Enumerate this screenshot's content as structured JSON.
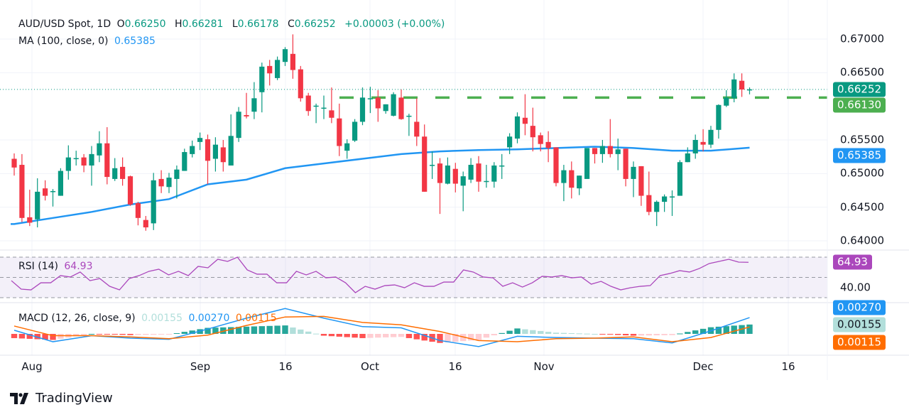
{
  "header": {
    "symbol": "AUD/USD Spot, 1D",
    "o_label": "O",
    "open": "0.66250",
    "h_label": "H",
    "high": "0.66281",
    "l_label": "L",
    "low": "0.66178",
    "c_label": "C",
    "close": "0.66252",
    "change": "+0.00003 (+0.00%)"
  },
  "ma_legend": {
    "label": "MA (100, close, 0)",
    "value": "0.65385"
  },
  "rsi_legend": {
    "label": "RSI (14)",
    "value": "64.93"
  },
  "macd_legend": {
    "label": "MACD (12, 26, close, 9)",
    "hist": "0.00155",
    "macd": "0.00270",
    "signal": "0.00115"
  },
  "price_axis": {
    "ticks": [
      "0.67000",
      "0.66500",
      "0.65500",
      "0.65000",
      "0.64500",
      "0.64000"
    ],
    "current_price": "0.66252",
    "resistance": "0.66130",
    "ma_value": "0.65385"
  },
  "rsi_axis": {
    "tick": "40.00",
    "value": "64.93"
  },
  "macd_axis": {
    "macd": "0.00270",
    "hist": "0.00155",
    "signal": "0.00115"
  },
  "time_axis": [
    "Aug",
    "Sep",
    "16",
    "Oct",
    "16",
    "Nov",
    "Dec",
    "16"
  ],
  "colors": {
    "up": "#089981",
    "down": "#f23645",
    "ma": "#2196f3",
    "resistance": "#4caf50",
    "rsi": "#ab47bc",
    "macd": "#2196f3",
    "signal": "#ff6d00",
    "hist_up_strong": "#26a69a",
    "hist_up_weak": "#b2dfdb",
    "hist_down_strong": "#ff5252",
    "hist_down_weak": "#ffcdd2"
  },
  "footer": {
    "brand": "TradingView"
  },
  "chart_data": {
    "type": "candlestick",
    "ylim": [
      0.638,
      0.6715
    ],
    "candles_ohlc": [
      [
        0.6522,
        0.653,
        0.6497,
        0.6509
      ],
      [
        0.6513,
        0.6529,
        0.6428,
        0.6434
      ],
      [
        0.6435,
        0.6476,
        0.6422,
        0.6427
      ],
      [
        0.6432,
        0.6493,
        0.642,
        0.6473
      ],
      [
        0.6478,
        0.649,
        0.646,
        0.6467
      ],
      [
        0.6474,
        0.6477,
        0.6451,
        0.6474
      ],
      [
        0.6467,
        0.6508,
        0.6467,
        0.6504
      ],
      [
        0.6504,
        0.6542,
        0.6491,
        0.6524
      ],
      [
        0.6523,
        0.6534,
        0.6512,
        0.6523
      ],
      [
        0.6524,
        0.6529,
        0.6502,
        0.6512
      ],
      [
        0.6512,
        0.6541,
        0.6482,
        0.6529
      ],
      [
        0.6527,
        0.6563,
        0.6517,
        0.6545
      ],
      [
        0.6545,
        0.6569,
        0.6484,
        0.6495
      ],
      [
        0.6492,
        0.6523,
        0.6489,
        0.6508
      ],
      [
        0.651,
        0.6524,
        0.6482,
        0.6492
      ],
      [
        0.6496,
        0.6497,
        0.6452,
        0.6454
      ],
      [
        0.6456,
        0.6458,
        0.6423,
        0.6434
      ],
      [
        0.6431,
        0.6437,
        0.6415,
        0.642
      ],
      [
        0.6426,
        0.6501,
        0.6416,
        0.649
      ],
      [
        0.6492,
        0.6505,
        0.6471,
        0.6481
      ],
      [
        0.648,
        0.6501,
        0.6471,
        0.6494
      ],
      [
        0.6492,
        0.6512,
        0.6463,
        0.6506
      ],
      [
        0.6504,
        0.6537,
        0.6504,
        0.6532
      ],
      [
        0.6529,
        0.6549,
        0.6524,
        0.6541
      ],
      [
        0.6547,
        0.6561,
        0.6535,
        0.6553
      ],
      [
        0.6551,
        0.6558,
        0.6484,
        0.6519
      ],
      [
        0.6522,
        0.6554,
        0.6503,
        0.6543
      ],
      [
        0.6539,
        0.655,
        0.6503,
        0.6517
      ],
      [
        0.6512,
        0.6588,
        0.6512,
        0.6556
      ],
      [
        0.6553,
        0.6599,
        0.6547,
        0.6592
      ],
      [
        0.6587,
        0.662,
        0.6582,
        0.6585
      ],
      [
        0.6592,
        0.6636,
        0.6581,
        0.6612
      ],
      [
        0.6621,
        0.6665,
        0.6591,
        0.6659
      ],
      [
        0.666,
        0.6669,
        0.6631,
        0.6649
      ],
      [
        0.6642,
        0.6674,
        0.6639,
        0.6669
      ],
      [
        0.6666,
        0.6688,
        0.666,
        0.6685
      ],
      [
        0.6678,
        0.6707,
        0.6641,
        0.6654
      ],
      [
        0.6655,
        0.666,
        0.6607,
        0.6612
      ],
      [
        0.6616,
        0.662,
        0.6586,
        0.6593
      ],
      [
        0.6601,
        0.6604,
        0.6575,
        0.6601
      ],
      [
        0.6598,
        0.6616,
        0.6581,
        0.6598
      ],
      [
        0.6594,
        0.6628,
        0.6575,
        0.6583
      ],
      [
        0.6582,
        0.6604,
        0.6526,
        0.6541
      ],
      [
        0.6534,
        0.6551,
        0.6522,
        0.6545
      ],
      [
        0.6549,
        0.6581,
        0.6547,
        0.6577
      ],
      [
        0.6577,
        0.6628,
        0.6572,
        0.6613
      ],
      [
        0.6612,
        0.6629,
        0.659,
        0.6612
      ],
      [
        0.6613,
        0.6624,
        0.6577,
        0.6597
      ],
      [
        0.6593,
        0.6603,
        0.6589,
        0.6603
      ],
      [
        0.6586,
        0.6621,
        0.6585,
        0.6618
      ],
      [
        0.6613,
        0.6625,
        0.658,
        0.6581
      ],
      [
        0.6586,
        0.6589,
        0.6556,
        0.6586
      ],
      [
        0.6577,
        0.6612,
        0.6541,
        0.6555
      ],
      [
        0.6555,
        0.6573,
        0.6473,
        0.6473
      ],
      [
        0.6513,
        0.6533,
        0.6492,
        0.6513
      ],
      [
        0.6515,
        0.6523,
        0.644,
        0.6486
      ],
      [
        0.6485,
        0.6524,
        0.6484,
        0.6512
      ],
      [
        0.6507,
        0.6516,
        0.6472,
        0.6485
      ],
      [
        0.6482,
        0.6503,
        0.6444,
        0.6496
      ],
      [
        0.6491,
        0.6523,
        0.6486,
        0.6513
      ],
      [
        0.6515,
        0.6526,
        0.6473,
        0.6488
      ],
      [
        0.6489,
        0.6513,
        0.6479,
        0.6489
      ],
      [
        0.6488,
        0.6517,
        0.6479,
        0.6512
      ],
      [
        0.6512,
        0.6529,
        0.6492,
        0.6512
      ],
      [
        0.6539,
        0.656,
        0.6529,
        0.6555
      ],
      [
        0.6552,
        0.6591,
        0.6545,
        0.6585
      ],
      [
        0.6583,
        0.6618,
        0.6557,
        0.6574
      ],
      [
        0.6571,
        0.6598,
        0.6533,
        0.6554
      ],
      [
        0.6557,
        0.6561,
        0.6533,
        0.6544
      ],
      [
        0.6547,
        0.6563,
        0.6517,
        0.6538
      ],
      [
        0.6539,
        0.6539,
        0.6481,
        0.6486
      ],
      [
        0.6486,
        0.6513,
        0.6459,
        0.6505
      ],
      [
        0.6505,
        0.6518,
        0.6463,
        0.6479
      ],
      [
        0.6478,
        0.6497,
        0.6468,
        0.6497
      ],
      [
        0.6492,
        0.6538,
        0.6492,
        0.6538
      ],
      [
        0.6538,
        0.6538,
        0.6515,
        0.6529
      ],
      [
        0.6529,
        0.655,
        0.6516,
        0.6541
      ],
      [
        0.6541,
        0.6581,
        0.6524,
        0.6529
      ],
      [
        0.6529,
        0.6552,
        0.6505,
        0.6536
      ],
      [
        0.6537,
        0.6537,
        0.6481,
        0.6492
      ],
      [
        0.6492,
        0.6518,
        0.6465,
        0.651
      ],
      [
        0.6511,
        0.6511,
        0.6452,
        0.6467
      ],
      [
        0.6468,
        0.6503,
        0.6438,
        0.6443
      ],
      [
        0.6443,
        0.646,
        0.6422,
        0.6458
      ],
      [
        0.6458,
        0.6469,
        0.6443,
        0.6466
      ],
      [
        0.6466,
        0.6475,
        0.6437,
        0.6466
      ],
      [
        0.6467,
        0.652,
        0.6467,
        0.6517
      ],
      [
        0.6517,
        0.6539,
        0.6517,
        0.653
      ],
      [
        0.653,
        0.6558,
        0.6522,
        0.655
      ],
      [
        0.6547,
        0.6566,
        0.6533,
        0.6543
      ],
      [
        0.6543,
        0.6571,
        0.6538,
        0.6565
      ],
      [
        0.6565,
        0.6603,
        0.6552,
        0.6602
      ],
      [
        0.6601,
        0.6624,
        0.6599,
        0.6613
      ],
      [
        0.6612,
        0.6649,
        0.6606,
        0.664
      ],
      [
        0.6638,
        0.6649,
        0.6614,
        0.6625
      ],
      [
        0.6625,
        0.66281,
        0.66178,
        0.66252
      ]
    ],
    "ma100_every_5_bars": [
      0.6425,
      0.6434,
      0.6443,
      0.6454,
      0.6462,
      0.6484,
      0.6491,
      0.6508,
      0.6515,
      0.6522,
      0.6529,
      0.6533,
      0.6535,
      0.6536,
      0.6538,
      0.654,
      0.6538,
      0.6534,
      0.6534,
      0.65385
    ],
    "resistance_level": 0.6613,
    "rsi": {
      "levels": [
        70,
        50,
        30
      ],
      "values": [
        46.8,
        38.4,
        37.7,
        44.7,
        44.7,
        51.8,
        50.4,
        55.3,
        46.8,
        48.9,
        41.2,
        37.7,
        48.9,
        51.8,
        56.0,
        58.1,
        52.5,
        56.0,
        51.8,
        60.9,
        59.5,
        67.9,
        65.8,
        70.0,
        57.4,
        53.2,
        53.2,
        44.7,
        44.7,
        56.0,
        52.5,
        56.0,
        49.6,
        50.4,
        44.7,
        34.9,
        41.2,
        38.4,
        41.9,
        42.6,
        39.8,
        44.7,
        41.2,
        41.2,
        45.4,
        45.4,
        57.4,
        55.3,
        50.4,
        49.6,
        41.2,
        44.7,
        40.5,
        44.7,
        51.1,
        50.4,
        51.8,
        49.6,
        50.4,
        43.3,
        46.1,
        41.2,
        37.7,
        39.8,
        41.2,
        41.9,
        51.8,
        53.9,
        56.7,
        55.3,
        58.8,
        63.7,
        65.8,
        67.9,
        65.1,
        64.93
      ]
    },
    "macd": {
      "macd_every_5_bars": [
        0.0006,
        -0.0013,
        -0.0003,
        -0.0007,
        -0.0009,
        0.0008,
        0.0026,
        0.0042,
        0.0026,
        0.0012,
        0.001,
        -0.0011,
        -0.0021,
        -0.0004,
        -0.0006,
        -0.0007,
        -0.0008,
        -0.0015,
        0.0005,
        0.0027
      ],
      "signal_every_5_bars": [
        0.0013,
        -0.0003,
        -0.0003,
        -0.0005,
        -0.0008,
        -0.0002,
        0.0014,
        0.0028,
        0.0029,
        0.0019,
        0.0015,
        0.0004,
        -0.0011,
        -0.0013,
        -0.0008,
        -0.0007,
        -0.0005,
        -0.0013,
        -0.0006,
        0.00115
      ]
    }
  }
}
